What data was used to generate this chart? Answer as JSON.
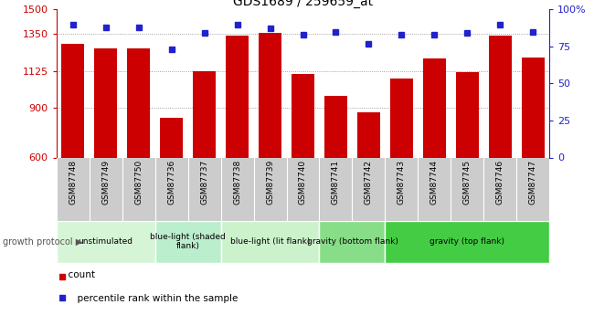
{
  "title": "GDS1689 / 259659_at",
  "samples": [
    "GSM87748",
    "GSM87749",
    "GSM87750",
    "GSM87736",
    "GSM87737",
    "GSM87738",
    "GSM87739",
    "GSM87740",
    "GSM87741",
    "GSM87742",
    "GSM87743",
    "GSM87744",
    "GSM87745",
    "GSM87746",
    "GSM87747"
  ],
  "counts": [
    1290,
    1265,
    1265,
    840,
    1125,
    1340,
    1355,
    1110,
    975,
    875,
    1080,
    1200,
    1120,
    1340,
    1210
  ],
  "percentile_ranks": [
    90,
    88,
    88,
    73,
    84,
    90,
    87,
    83,
    85,
    77,
    83,
    83,
    84,
    90,
    85
  ],
  "ylim_left": [
    600,
    1500
  ],
  "ylim_right": [
    0,
    100
  ],
  "yticks_left": [
    600,
    900,
    1125,
    1350,
    1500
  ],
  "yticks_right": [
    0,
    25,
    50,
    75,
    100
  ],
  "bar_color": "#cc0000",
  "dot_color": "#2222cc",
  "groups": [
    {
      "label": "unstimulated",
      "start": 0,
      "end": 3,
      "color": "#d6f5d6"
    },
    {
      "label": "blue-light (shaded\nflank)",
      "start": 3,
      "end": 5,
      "color": "#bbeecc"
    },
    {
      "label": "blue-light (lit flank)",
      "start": 5,
      "end": 8,
      "color": "#ccf2cc"
    },
    {
      "label": "gravity (bottom flank)",
      "start": 8,
      "end": 10,
      "color": "#88dd88"
    },
    {
      "label": "gravity (top flank)",
      "start": 10,
      "end": 15,
      "color": "#44cc44"
    }
  ],
  "xlabel_growth": "growth protocol",
  "legend_count": "count",
  "legend_percentile": "percentile rank within the sample",
  "background_color": "#ffffff",
  "grid_color": "#888888",
  "tick_area_color": "#cccccc"
}
